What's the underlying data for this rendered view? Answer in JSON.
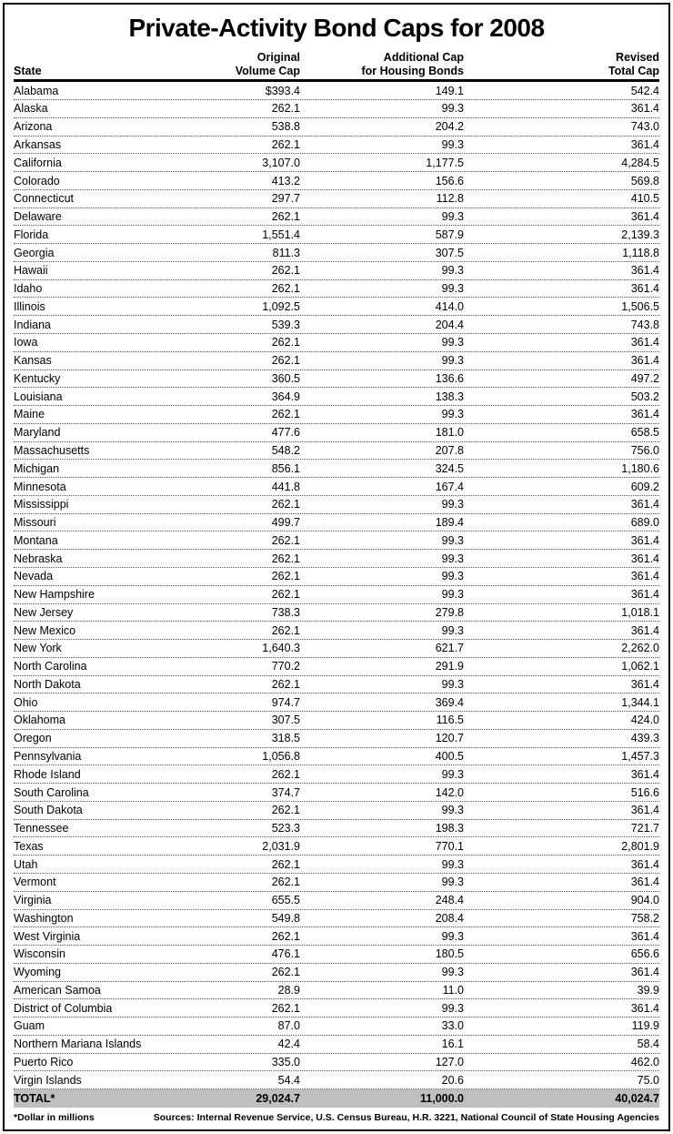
{
  "title": "Private-Activity Bond Caps for 2008",
  "chart_data": {
    "type": "table",
    "columns": [
      "State",
      "Original Volume Cap",
      "Additional Cap for Housing Bonds",
      "Revised Total Cap"
    ],
    "header_lines": {
      "state": "State",
      "original": "Original\nVolume Cap",
      "additional": "Additional Cap\nfor Housing Bonds",
      "revised": "Revised\nTotal Cap"
    },
    "units_note": "Dollar in millions",
    "rows": [
      [
        "Alabama",
        "$393.4",
        "149.1",
        "542.4"
      ],
      [
        "Alaska",
        "262.1",
        "99.3",
        "361.4"
      ],
      [
        "Arizona",
        "538.8",
        "204.2",
        "743.0"
      ],
      [
        "Arkansas",
        "262.1",
        "99.3",
        "361.4"
      ],
      [
        "California",
        "3,107.0",
        "1,177.5",
        "4,284.5"
      ],
      [
        "Colorado",
        "413.2",
        "156.6",
        "569.8"
      ],
      [
        "Connecticut",
        "297.7",
        "112.8",
        "410.5"
      ],
      [
        "Delaware",
        "262.1",
        "99.3",
        "361.4"
      ],
      [
        "Florida",
        "1,551.4",
        "587.9",
        "2,139.3"
      ],
      [
        "Georgia",
        "811.3",
        "307.5",
        "1,118.8"
      ],
      [
        "Hawaii",
        "262.1",
        "99.3",
        "361.4"
      ],
      [
        "Idaho",
        "262.1",
        "99.3",
        "361.4"
      ],
      [
        "Illinois",
        "1,092.5",
        "414.0",
        "1,506.5"
      ],
      [
        "Indiana",
        "539.3",
        "204.4",
        "743.8"
      ],
      [
        "Iowa",
        "262.1",
        "99.3",
        "361.4"
      ],
      [
        "Kansas",
        "262.1",
        "99.3",
        "361.4"
      ],
      [
        "Kentucky",
        "360.5",
        "136.6",
        "497.2"
      ],
      [
        "Louisiana",
        "364.9",
        "138.3",
        "503.2"
      ],
      [
        "Maine",
        "262.1",
        "99.3",
        "361.4"
      ],
      [
        "Maryland",
        "477.6",
        "181.0",
        "658.5"
      ],
      [
        "Massachusetts",
        "548.2",
        "207.8",
        "756.0"
      ],
      [
        "Michigan",
        "856.1",
        "324.5",
        "1,180.6"
      ],
      [
        "Minnesota",
        "441.8",
        "167.4",
        "609.2"
      ],
      [
        "Mississippi",
        "262.1",
        "99.3",
        "361.4"
      ],
      [
        "Missouri",
        "499.7",
        "189.4",
        "689.0"
      ],
      [
        "Montana",
        "262.1",
        "99.3",
        "361.4"
      ],
      [
        "Nebraska",
        "262.1",
        "99.3",
        "361.4"
      ],
      [
        "Nevada",
        "262.1",
        "99.3",
        "361.4"
      ],
      [
        "New Hampshire",
        "262.1",
        "99.3",
        "361.4"
      ],
      [
        "New Jersey",
        "738.3",
        "279.8",
        "1,018.1"
      ],
      [
        "New Mexico",
        "262.1",
        "99.3",
        "361.4"
      ],
      [
        "New York",
        "1,640.3",
        "621.7",
        "2,262.0"
      ],
      [
        "North Carolina",
        "770.2",
        "291.9",
        "1,062.1"
      ],
      [
        "North Dakota",
        "262.1",
        "99.3",
        "361.4"
      ],
      [
        "Ohio",
        "974.7",
        "369.4",
        "1,344.1"
      ],
      [
        "Oklahoma",
        "307.5",
        "116.5",
        "424.0"
      ],
      [
        "Oregon",
        "318.5",
        "120.7",
        "439.3"
      ],
      [
        "Pennsylvania",
        "1,056.8",
        "400.5",
        "1,457.3"
      ],
      [
        "Rhode Island",
        "262.1",
        "99.3",
        "361.4"
      ],
      [
        "South Carolina",
        "374.7",
        "142.0",
        "516.6"
      ],
      [
        "South Dakota",
        "262.1",
        "99.3",
        "361.4"
      ],
      [
        "Tennessee",
        "523.3",
        "198.3",
        "721.7"
      ],
      [
        "Texas",
        "2,031.9",
        "770.1",
        "2,801.9"
      ],
      [
        "Utah",
        "262.1",
        "99.3",
        "361.4"
      ],
      [
        "Vermont",
        "262.1",
        "99.3",
        "361.4"
      ],
      [
        "Virginia",
        "655.5",
        "248.4",
        "904.0"
      ],
      [
        "Washington",
        "549.8",
        "208.4",
        "758.2"
      ],
      [
        "West Virginia",
        "262.1",
        "99.3",
        "361.4"
      ],
      [
        "Wisconsin",
        "476.1",
        "180.5",
        "656.6"
      ],
      [
        "Wyoming",
        "262.1",
        "99.3",
        "361.4"
      ],
      [
        "American Samoa",
        "28.9",
        "11.0",
        "39.9"
      ],
      [
        "District of Columbia",
        "262.1",
        "99.3",
        "361.4"
      ],
      [
        "Guam",
        "87.0",
        "33.0",
        "119.9"
      ],
      [
        "Northern Mariana Islands",
        "42.4",
        "16.1",
        "58.4"
      ],
      [
        "Puerto Rico",
        "335.0",
        "127.0",
        "462.0"
      ],
      [
        "Virgin Islands",
        "54.4",
        "20.6",
        "75.0"
      ]
    ],
    "total_row": [
      "TOTAL*",
      "29,024.7",
      "11,000.0",
      "40,024.7"
    ]
  },
  "footer": {
    "footnote": "*Dollar in millions",
    "sources": "Sources: Internal Revenue Service, U.S. Census Bureau, H.R. 3221, National Council of State Housing Agencies"
  }
}
